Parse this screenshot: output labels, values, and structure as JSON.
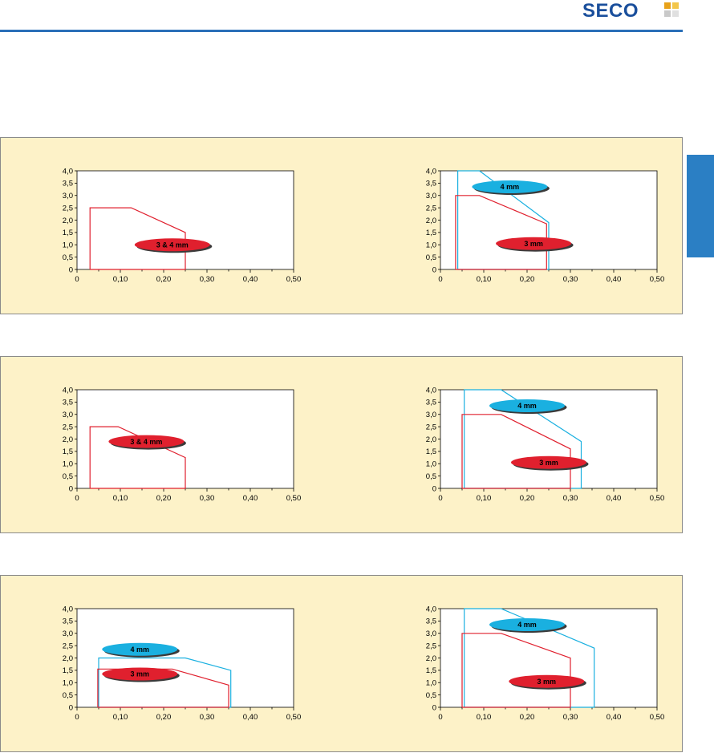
{
  "brand": {
    "name": "SECO",
    "color": "#1a4f9c",
    "mark_colors": [
      "#e8a21a",
      "#f3c64a",
      "#c9c9c9",
      "#e0e0e0"
    ]
  },
  "accent": "#2a6fb8",
  "panel_background": "#fdf2c8",
  "series_colors": {
    "3 mm": "#e0202e",
    "4 mm": "#1ab0e0",
    "3 & 4 mm": "#e0202e"
  },
  "chart_data": [
    {
      "type": "area",
      "xlim": [
        0,
        0.5
      ],
      "ylim": [
        0,
        4.0
      ],
      "xticks": [
        "0",
        "0,10",
        "0,20",
        "0,30",
        "0,40",
        "0,50"
      ],
      "yticks": [
        "0",
        "0,5",
        "1,0",
        "1,5",
        "2,0",
        "2,5",
        "3,0",
        "3,5",
        "4,0"
      ],
      "series": [
        {
          "name": "3 & 4 mm",
          "color": "#e0202e",
          "points": [
            [
              0.03,
              0
            ],
            [
              0.03,
              2.5
            ],
            [
              0.125,
              2.5
            ],
            [
              0.25,
              1.5
            ],
            [
              0.25,
              0
            ],
            [
              0.03,
              0
            ]
          ],
          "label_at": [
            0.22,
            1.0
          ]
        }
      ]
    },
    {
      "type": "area",
      "xlim": [
        0,
        0.5
      ],
      "ylim": [
        0,
        4.0
      ],
      "xticks": [
        "0",
        "0,10",
        "0,20",
        "0,30",
        "0,40",
        "0,50"
      ],
      "yticks": [
        "0",
        "0,5",
        "1,0",
        "1,5",
        "2,0",
        "2,5",
        "3,0",
        "3,5",
        "4,0"
      ],
      "series": [
        {
          "name": "4 mm",
          "color": "#1ab0e0",
          "points": [
            [
              0.04,
              0
            ],
            [
              0.04,
              4.0
            ],
            [
              0.09,
              4.0
            ],
            [
              0.25,
              1.9
            ],
            [
              0.25,
              0
            ],
            [
              0.04,
              0
            ]
          ],
          "label_at": [
            0.16,
            3.35
          ]
        },
        {
          "name": "3 mm",
          "color": "#e0202e",
          "points": [
            [
              0.035,
              0
            ],
            [
              0.035,
              3.0
            ],
            [
              0.09,
              3.0
            ],
            [
              0.245,
              1.85
            ],
            [
              0.245,
              0
            ],
            [
              0.035,
              0
            ]
          ],
          "label_at": [
            0.215,
            1.05
          ]
        }
      ]
    },
    {
      "type": "area",
      "xlim": [
        0,
        0.5
      ],
      "ylim": [
        0,
        4.0
      ],
      "xticks": [
        "0",
        "0,10",
        "0,20",
        "0,30",
        "0,40",
        "0,50"
      ],
      "yticks": [
        "0",
        "0,5",
        "1,0",
        "1,5",
        "2,0",
        "2,5",
        "3,0",
        "3,5",
        "4,0"
      ],
      "series": [
        {
          "name": "3 & 4 mm",
          "color": "#e0202e",
          "points": [
            [
              0.03,
              0
            ],
            [
              0.03,
              2.5
            ],
            [
              0.095,
              2.5
            ],
            [
              0.25,
              1.25
            ],
            [
              0.25,
              0
            ],
            [
              0.03,
              0
            ]
          ],
          "label_at": [
            0.16,
            1.9
          ]
        }
      ]
    },
    {
      "type": "area",
      "xlim": [
        0,
        0.5
      ],
      "ylim": [
        0,
        4.0
      ],
      "xticks": [
        "0",
        "0,10",
        "0,20",
        "0,30",
        "0,40",
        "0,50"
      ],
      "yticks": [
        "0",
        "0,5",
        "1,0",
        "1,5",
        "2,0",
        "2,5",
        "3,0",
        "3,5",
        "4,0"
      ],
      "series": [
        {
          "name": "4 mm",
          "color": "#1ab0e0",
          "points": [
            [
              0.055,
              0
            ],
            [
              0.055,
              4.0
            ],
            [
              0.14,
              4.0
            ],
            [
              0.325,
              1.9
            ],
            [
              0.325,
              0
            ],
            [
              0.055,
              0
            ]
          ],
          "label_at": [
            0.2,
            3.35
          ]
        },
        {
          "name": "3 mm",
          "color": "#e0202e",
          "points": [
            [
              0.05,
              0
            ],
            [
              0.05,
              3.0
            ],
            [
              0.14,
              3.0
            ],
            [
              0.3,
              1.6
            ],
            [
              0.3,
              0
            ],
            [
              0.05,
              0
            ]
          ],
          "label_at": [
            0.25,
            1.05
          ]
        }
      ]
    },
    {
      "type": "area",
      "xlim": [
        0,
        0.5
      ],
      "ylim": [
        0,
        4.0
      ],
      "xticks": [
        "0",
        "0,10",
        "0,20",
        "0,30",
        "0,40",
        "0,50"
      ],
      "yticks": [
        "0",
        "0,5",
        "1,0",
        "1,5",
        "2,0",
        "2,5",
        "3,0",
        "3,5",
        "4,0"
      ],
      "series": [
        {
          "name": "4 mm",
          "color": "#1ab0e0",
          "points": [
            [
              0.05,
              0
            ],
            [
              0.05,
              2.0
            ],
            [
              0.25,
              2.0
            ],
            [
              0.355,
              1.5
            ],
            [
              0.355,
              0
            ],
            [
              0.05,
              0
            ]
          ],
          "label_at": [
            0.145,
            2.35
          ]
        },
        {
          "name": "3 mm",
          "color": "#e0202e",
          "points": [
            [
              0.048,
              0
            ],
            [
              0.048,
              1.55
            ],
            [
              0.22,
              1.55
            ],
            [
              0.35,
              0.9
            ],
            [
              0.35,
              0
            ],
            [
              0.048,
              0
            ]
          ],
          "label_at": [
            0.145,
            1.35
          ]
        }
      ]
    },
    {
      "type": "area",
      "xlim": [
        0,
        0.5
      ],
      "ylim": [
        0,
        4.0
      ],
      "xticks": [
        "0",
        "0,10",
        "0,20",
        "0,30",
        "0,40",
        "0,50"
      ],
      "yticks": [
        "0",
        "0,5",
        "1,0",
        "1,5",
        "2,0",
        "2,5",
        "3,0",
        "3,5",
        "4,0"
      ],
      "series": [
        {
          "name": "4 mm",
          "color": "#1ab0e0",
          "points": [
            [
              0.055,
              0
            ],
            [
              0.055,
              4.0
            ],
            [
              0.14,
              4.0
            ],
            [
              0.355,
              2.4
            ],
            [
              0.355,
              0
            ],
            [
              0.055,
              0
            ]
          ],
          "label_at": [
            0.2,
            3.35
          ]
        },
        {
          "name": "3 mm",
          "color": "#e0202e",
          "points": [
            [
              0.05,
              0
            ],
            [
              0.05,
              3.0
            ],
            [
              0.14,
              3.0
            ],
            [
              0.3,
              2.0
            ],
            [
              0.3,
              0
            ],
            [
              0.05,
              0
            ]
          ],
          "label_at": [
            0.245,
            1.05
          ]
        }
      ]
    }
  ]
}
